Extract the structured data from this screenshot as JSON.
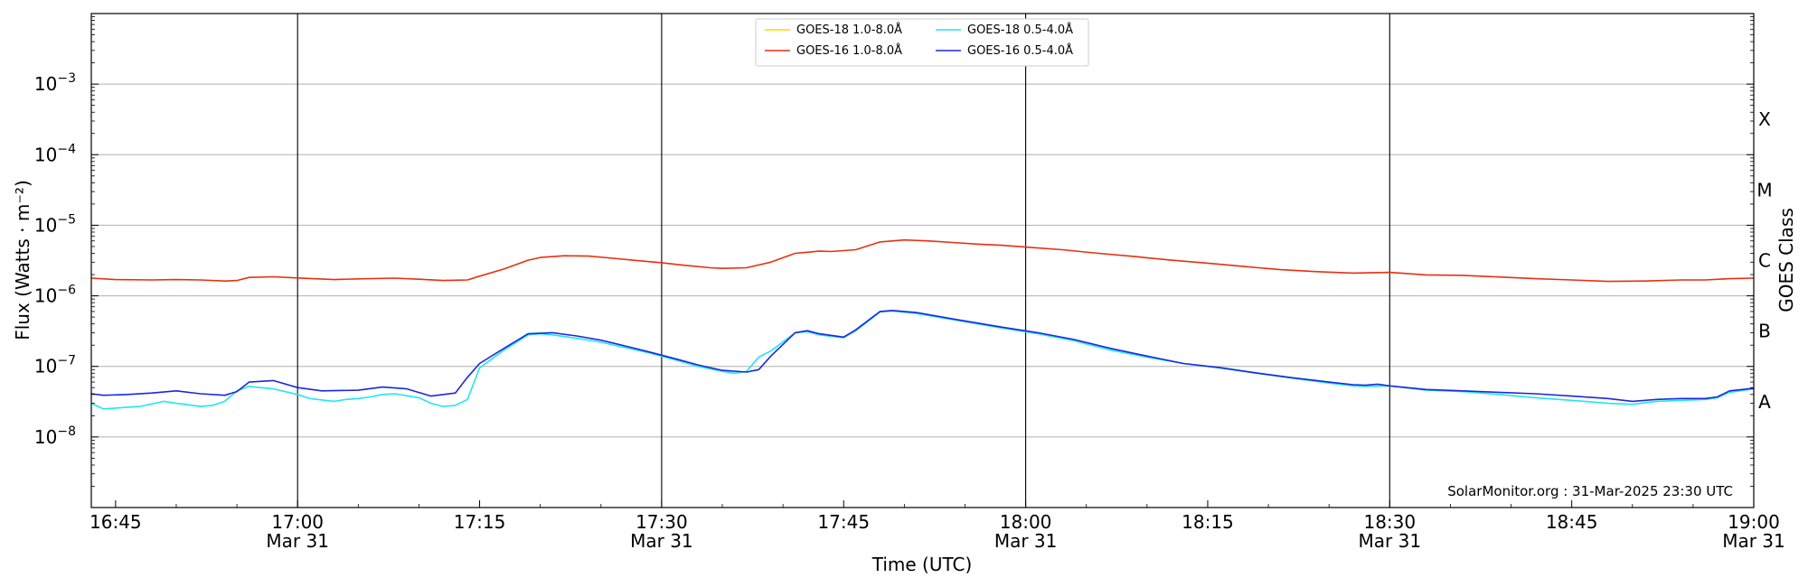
{
  "chart_data": {
    "type": "line",
    "title": "",
    "xlabel": "Time (UTC)",
    "ylabel": "Flux (Watts · m⁻²)",
    "right_ylabel": "GOES Class",
    "y_scale": "log",
    "ylim": [
      "1e-9",
      "1e-2"
    ],
    "xlim": [
      "16:43",
      "19:00"
    ],
    "grid": "horizontal",
    "legend_position": "top-center",
    "credit": "SolarMonitor.org : 31-Mar-2025 23:30 UTC",
    "x_ticks": [
      {
        "time": "16:45",
        "label": "16:45",
        "date": ""
      },
      {
        "time": "17:00",
        "label": "17:00",
        "date": "Mar 31"
      },
      {
        "time": "17:15",
        "label": "17:15",
        "date": ""
      },
      {
        "time": "17:30",
        "label": "17:30",
        "date": "Mar 31"
      },
      {
        "time": "17:45",
        "label": "17:45",
        "date": ""
      },
      {
        "time": "18:00",
        "label": "18:00",
        "date": "Mar 31"
      },
      {
        "time": "18:15",
        "label": "18:15",
        "date": ""
      },
      {
        "time": "18:30",
        "label": "18:30",
        "date": "Mar 31"
      },
      {
        "time": "18:45",
        "label": "18:45",
        "date": ""
      },
      {
        "time": "19:00",
        "label": "19:00",
        "date": "Mar 31"
      }
    ],
    "y_ticks": [
      {
        "exp": -8,
        "base": "10",
        "sup": "−8"
      },
      {
        "exp": -7,
        "base": "10",
        "sup": "−7"
      },
      {
        "exp": -6,
        "base": "10",
        "sup": "−6"
      },
      {
        "exp": -5,
        "base": "10",
        "sup": "−5"
      },
      {
        "exp": -4,
        "base": "10",
        "sup": "−4"
      },
      {
        "exp": -3,
        "base": "10",
        "sup": "−3"
      }
    ],
    "goes_classes": [
      {
        "label": "A",
        "exp": -8
      },
      {
        "label": "B",
        "exp": -7
      },
      {
        "label": "C",
        "exp": -6
      },
      {
        "label": "M",
        "exp": -5
      },
      {
        "label": "X",
        "exp": -4
      }
    ],
    "flare_markers": [
      "17:00",
      "17:30",
      "18:00",
      "18:30"
    ],
    "series": [
      {
        "name": "GOES-18 1.0-8.0Å",
        "color": "#ffd700",
        "x": [],
        "y": []
      },
      {
        "name": "GOES-16 1.0-8.0Å",
        "color": "#e8300f",
        "x": [
          "16:43",
          "16:45",
          "16:48",
          "16:50",
          "16:52",
          "16:54",
          "16:55",
          "16:56",
          "16:58",
          "17:00",
          "17:03",
          "17:05",
          "17:08",
          "17:10",
          "17:12",
          "17:14",
          "17:15",
          "17:17",
          "17:19",
          "17:20",
          "17:22",
          "17:24",
          "17:26",
          "17:28",
          "17:30",
          "17:32",
          "17:34",
          "17:35",
          "17:37",
          "17:39",
          "17:41",
          "17:43",
          "17:44",
          "17:46",
          "17:48",
          "17:50",
          "17:52",
          "17:54",
          "17:56",
          "17:58",
          "18:00",
          "18:03",
          "18:06",
          "18:09",
          "18:12",
          "18:15",
          "18:18",
          "18:21",
          "18:24",
          "18:27",
          "18:30",
          "18:33",
          "18:36",
          "18:39",
          "18:42",
          "18:45",
          "18:48",
          "18:51",
          "18:54",
          "18:56",
          "18:58",
          "19:00"
        ],
        "y": [
          "1.78e-6",
          "1.70e-6",
          "1.68e-6",
          "1.70e-6",
          "1.68e-6",
          "1.62e-6",
          "1.65e-6",
          "1.82e-6",
          "1.86e-6",
          "1.79e-6",
          "1.70e-6",
          "1.74e-6",
          "1.78e-6",
          "1.72e-6",
          "1.65e-6",
          "1.68e-6",
          "1.90e-6",
          "2.40e-6",
          "3.20e-6",
          "3.50e-6",
          "3.70e-6",
          "3.65e-6",
          "3.40e-6",
          "3.15e-6",
          "2.95e-6",
          "2.70e-6",
          "2.50e-6",
          "2.45e-6",
          "2.50e-6",
          "3.00e-6",
          "4.00e-6",
          "4.30e-6",
          "4.25e-6",
          "4.50e-6",
          "5.80e-6",
          "6.20e-6",
          "6.00e-6",
          "5.70e-6",
          "5.40e-6",
          "5.20e-6",
          "4.90e-6",
          "4.50e-6",
          "4.00e-6",
          "3.60e-6",
          "3.20e-6",
          "2.90e-6",
          "2.60e-6",
          "2.35e-6",
          "2.20e-6",
          "2.10e-6",
          "2.15e-6",
          "1.98e-6",
          "1.95e-6",
          "1.85e-6",
          "1.75e-6",
          "1.68e-6",
          "1.60e-6",
          "1.62e-6",
          "1.68e-6",
          "1.68e-6",
          "1.75e-6",
          "1.78e-6"
        ]
      },
      {
        "name": "GOES-18 0.5-4.0Å",
        "color": "#22e5ef",
        "x": [
          "16:43",
          "16:44",
          "16:47",
          "16:49",
          "16:50",
          "16:52",
          "16:53",
          "16:54",
          "16:55",
          "16:56",
          "16:58",
          "17:00",
          "17:01",
          "17:03",
          "17:04",
          "17:05",
          "17:06",
          "17:07",
          "17:08",
          "17:10",
          "17:11",
          "17:12",
          "17:13",
          "17:14",
          "17:15",
          "17:17",
          "17:19",
          "17:20",
          "17:21",
          "17:23",
          "17:25",
          "17:27",
          "17:29",
          "17:31",
          "17:33",
          "17:35",
          "17:36",
          "17:37",
          "17:38",
          "17:39",
          "17:41",
          "17:42",
          "17:43",
          "17:45",
          "17:46",
          "17:48",
          "17:49",
          "17:51",
          "17:54",
          "17:58",
          "18:01",
          "18:04",
          "18:07",
          "18:10",
          "18:13",
          "18:16",
          "18:19",
          "18:22",
          "18:25",
          "18:27",
          "18:28",
          "18:30",
          "18:33",
          "18:36",
          "18:39",
          "18:42",
          "18:45",
          "18:48",
          "18:50",
          "18:52",
          "18:54",
          "18:56",
          "18:57",
          "18:58",
          "19:00"
        ],
        "y": [
          "3.0e-8",
          "2.5e-8",
          "2.7e-8",
          "3.2e-8",
          "3.0e-8",
          "2.7e-8",
          "2.8e-8",
          "3.2e-8",
          "4.5e-8",
          "5.2e-8",
          "4.8e-8",
          "4.0e-8",
          "3.5e-8",
          "3.2e-8",
          "3.4e-8",
          "3.5e-8",
          "3.7e-8",
          "4.0e-8",
          "4.1e-8",
          "3.6e-8",
          "3.0e-8",
          "2.7e-8",
          "2.8e-8",
          "3.4e-8",
          "9.5e-8",
          "1.7e-7",
          "2.8e-7",
          "2.9e-7",
          "2.8e-7",
          "2.5e-7",
          "2.2e-7",
          "1.85e-7",
          "1.55e-7",
          "1.25e-7",
          "1.0e-7",
          "8.5e-8",
          "8.0e-8",
          "8.5e-8",
          "1.35e-7",
          "1.65e-7",
          "3.0e-7",
          "3.1e-7",
          "2.8e-7",
          "2.55e-7",
          "3.2e-7",
          "5.9e-7",
          "6.1e-7",
          "5.6e-7",
          "4.6e-7",
          "3.5e-7",
          "2.9e-7",
          "2.3e-7",
          "1.7e-7",
          "1.35e-7",
          "1.1e-7",
          "9.5e-8",
          "8.0e-8",
          "6.8e-8",
          "5.8e-8",
          "5.3e-8",
          "5.2e-8",
          "5.3e-8",
          "4.6e-8",
          "4.4e-8",
          "4.0e-8",
          "3.6e-8",
          "3.3e-8",
          "3.0e-8",
          "2.9e-8",
          "3.2e-8",
          "3.3e-8",
          "3.4e-8",
          "3.6e-8",
          "4.3e-8",
          "4.8e-8"
        ]
      },
      {
        "name": "GOES-16 0.5-4.0Å",
        "color": "#1a28e0",
        "x": [
          "16:43",
          "16:44",
          "16:46",
          "16:48",
          "16:50",
          "16:52",
          "16:54",
          "16:55",
          "16:56",
          "16:58",
          "17:00",
          "17:02",
          "17:05",
          "17:07",
          "17:09",
          "17:11",
          "17:13",
          "17:14",
          "17:15",
          "17:17",
          "17:19",
          "17:21",
          "17:23",
          "17:25",
          "17:27",
          "17:29",
          "17:31",
          "17:33",
          "17:35",
          "17:37",
          "17:38",
          "17:39",
          "17:41",
          "17:42",
          "17:43",
          "17:45",
          "17:46",
          "17:48",
          "17:49",
          "17:51",
          "17:54",
          "17:58",
          "18:01",
          "18:04",
          "18:07",
          "18:10",
          "18:13",
          "18:16",
          "18:19",
          "18:22",
          "18:25",
          "18:27",
          "18:28",
          "18:29",
          "18:30",
          "18:33",
          "18:36",
          "18:39",
          "18:42",
          "18:45",
          "18:48",
          "18:50",
          "18:52",
          "18:54",
          "18:56",
          "18:57",
          "18:58",
          "19:00"
        ],
        "y": [
          "4.1e-8",
          "3.9e-8",
          "4.0e-8",
          "4.2e-8",
          "4.5e-8",
          "4.1e-8",
          "3.9e-8",
          "4.4e-8",
          "6.0e-8",
          "6.3e-8",
          "5.0e-8",
          "4.5e-8",
          "4.6e-8",
          "5.1e-8",
          "4.8e-8",
          "3.8e-8",
          "4.2e-8",
          "7.0e-8",
          "1.1e-7",
          "1.8e-7",
          "2.9e-7",
          "3.0e-7",
          "2.7e-7",
          "2.35e-7",
          "1.95e-7",
          "1.6e-7",
          "1.3e-7",
          "1.05e-7",
          "8.8e-8",
          "8.3e-8",
          "9.0e-8",
          "1.4e-7",
          "3.0e-7",
          "3.2e-7",
          "2.9e-7",
          "2.6e-7",
          "3.3e-7",
          "6.0e-7",
          "6.2e-7",
          "5.8e-7",
          "4.7e-7",
          "3.6e-7",
          "3.0e-7",
          "2.4e-7",
          "1.8e-7",
          "1.4e-7",
          "1.1e-7",
          "9.6e-8",
          "8.1e-8",
          "6.9e-8",
          "6.0e-8",
          "5.5e-8",
          "5.4e-8",
          "5.6e-8",
          "5.3e-8",
          "4.7e-8",
          "4.5e-8",
          "4.3e-8",
          "4.1e-8",
          "3.8e-8",
          "3.5e-8",
          "3.2e-8",
          "3.4e-8",
          "3.5e-8",
          "3.5e-8",
          "3.7e-8",
          "4.5e-8",
          "4.9e-8"
        ]
      }
    ]
  }
}
